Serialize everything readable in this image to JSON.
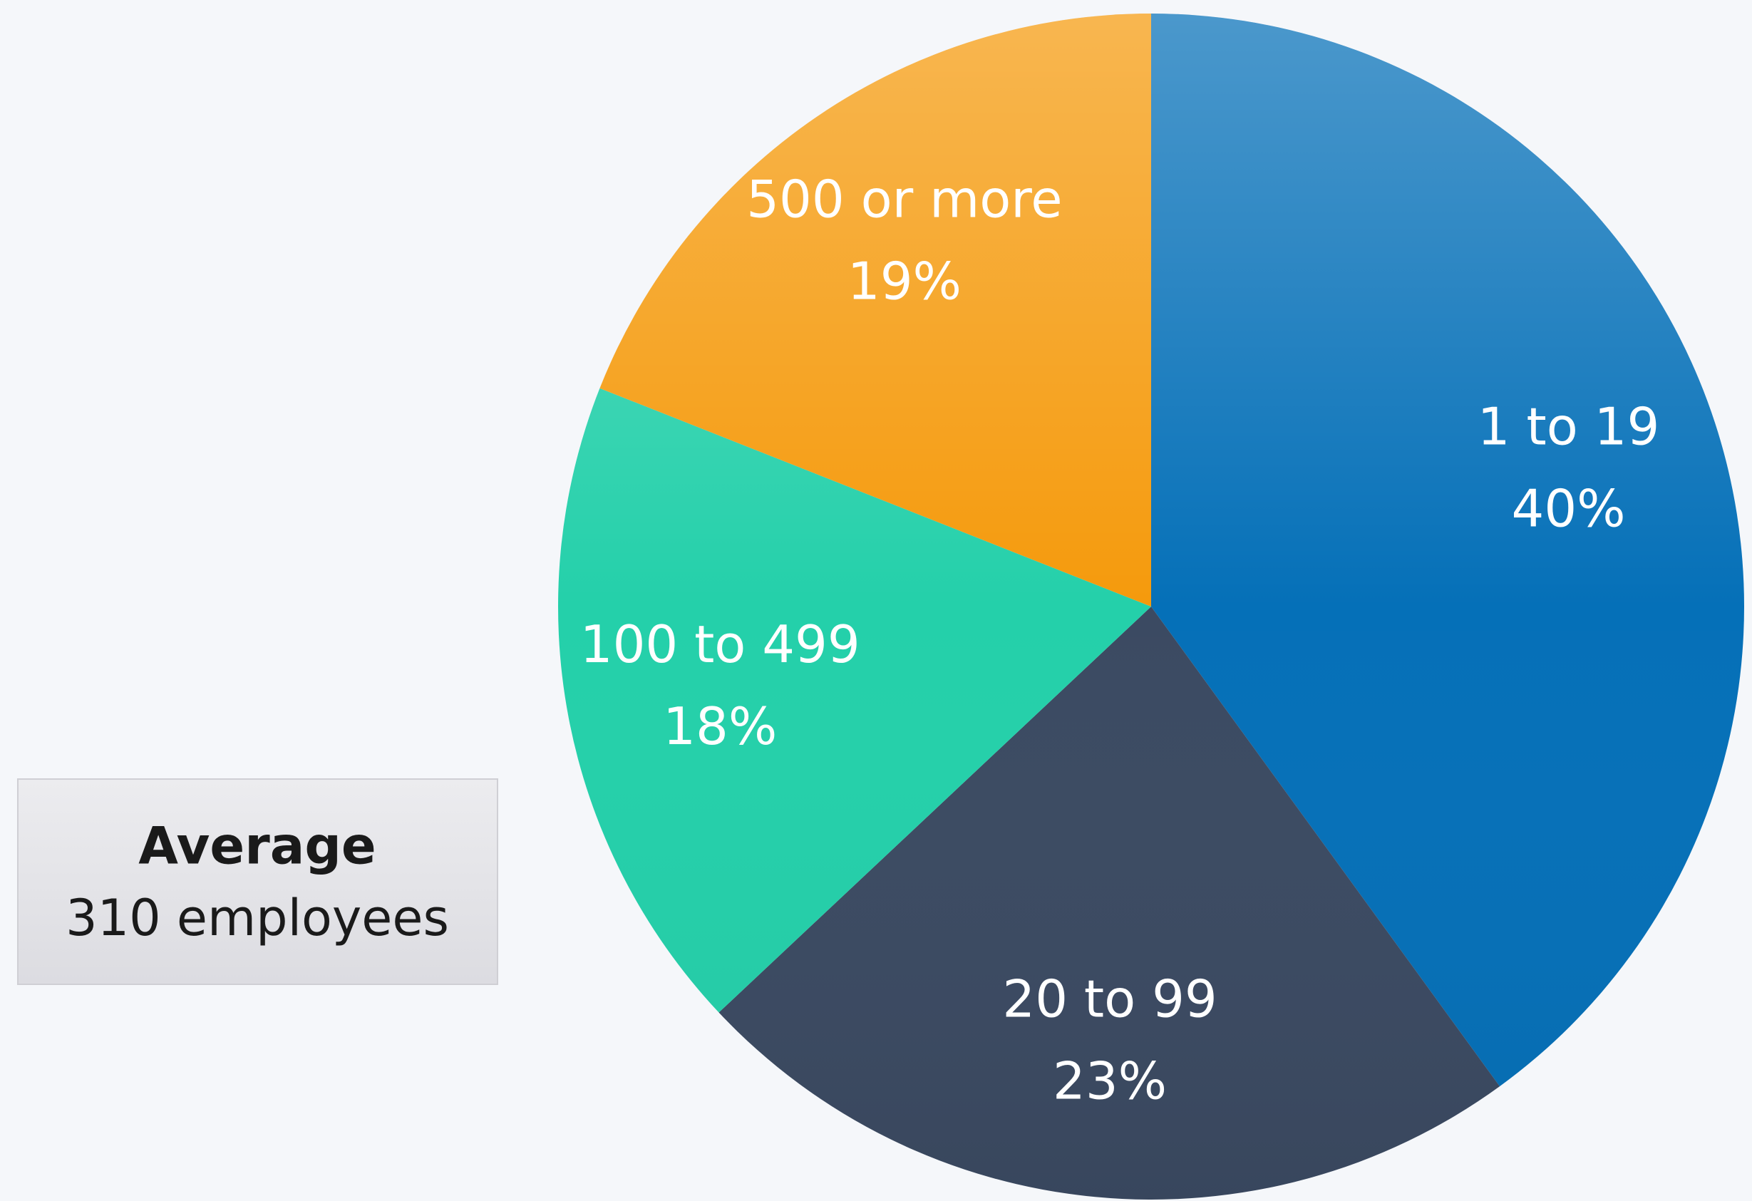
{
  "chart_data": {
    "type": "pie",
    "categories": [
      "1 to 19",
      "20 to 99",
      "100 to 499",
      "500 or more"
    ],
    "values": [
      40,
      23,
      18,
      19
    ],
    "value_labels": [
      "40%",
      "23%",
      "18%",
      "19%"
    ],
    "colors": [
      "#0570b8",
      "#3b4a62",
      "#24d0aa",
      "#f59a0c"
    ],
    "annotation": {
      "title": "Average",
      "text": "310 employees"
    }
  }
}
